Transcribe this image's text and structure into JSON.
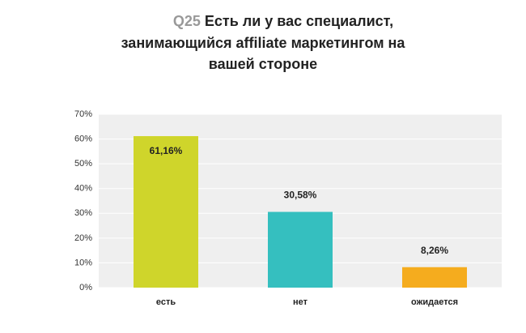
{
  "chart_data": {
    "type": "bar",
    "title_prefix": "Q25",
    "title_lines": [
      "Есть ли у вас специалист,",
      "занимающийся affiliate маркетингом на",
      "вашей стороне"
    ],
    "categories": [
      "есть",
      "нет",
      "ожидается"
    ],
    "values": [
      61.16,
      30.58,
      8.26
    ],
    "value_labels": [
      "61,16%",
      "30,58%",
      "8,26%"
    ],
    "colors": [
      "#cfd52b",
      "#35bfbf",
      "#f5ac1e"
    ],
    "ylim": [
      0,
      70
    ],
    "yticks": [
      {
        "value": 0,
        "label": "0%"
      },
      {
        "value": 10,
        "label": "10%"
      },
      {
        "value": 20,
        "label": "20%"
      },
      {
        "value": 30,
        "label": "30%"
      },
      {
        "value": 40,
        "label": "40%"
      },
      {
        "value": 50,
        "label": "50%"
      },
      {
        "value": 60,
        "label": "60%"
      },
      {
        "value": 70,
        "label": "70%"
      }
    ],
    "grid": true
  }
}
